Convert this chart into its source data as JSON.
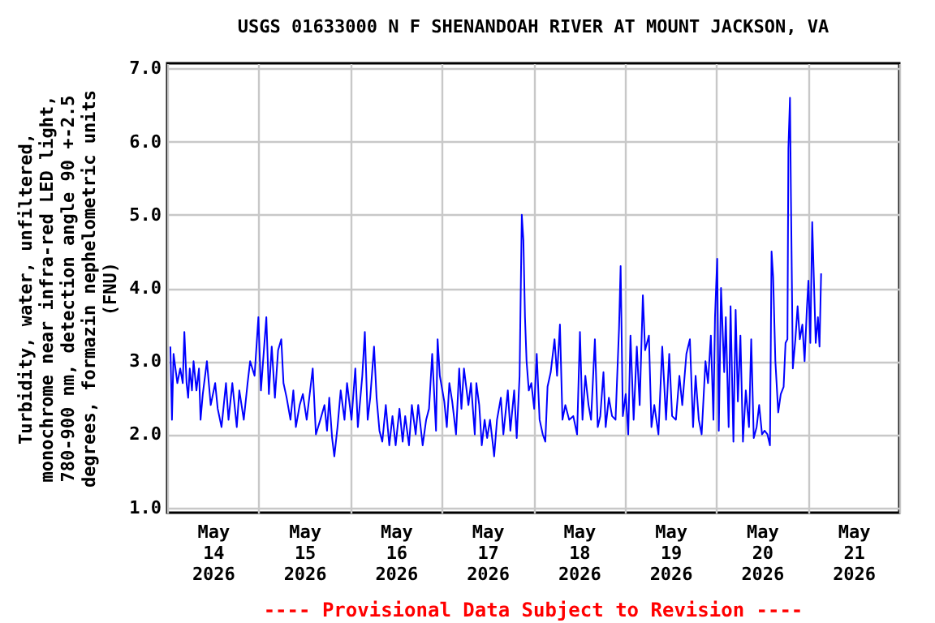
{
  "chart_data": {
    "type": "line",
    "title": "USGS 01633000 N F SHENANDOAH RIVER AT MOUNT JACKSON, VA",
    "ylabel": "Turbidity, water, unfiltered, monochrome near infra-red LED light, 780-900 nm, detection angle 90 +-2.5 degrees, formazin nephelometric units (FNU)",
    "annotations": [
      "---- Provisional Data Subject to Revision ----"
    ],
    "color": "#0000ff",
    "grid": true,
    "xlim": [
      "2026-05-14T00:00",
      "2026-05-22T00:00"
    ],
    "xticks": [
      {
        "value": "2026-05-14T00:00",
        "label": null
      },
      {
        "value": "2026-05-14T12:00",
        "label": "May\n14\n2026"
      },
      {
        "value": "2026-05-15T00:00",
        "label": null
      },
      {
        "value": "2026-05-15T12:00",
        "label": "May\n15\n2026"
      },
      {
        "value": "2026-05-16T00:00",
        "label": null
      },
      {
        "value": "2026-05-16T12:00",
        "label": "May\n16\n2026"
      },
      {
        "value": "2026-05-17T00:00",
        "label": null
      },
      {
        "value": "2026-05-17T12:00",
        "label": "May\n17\n2026"
      },
      {
        "value": "2026-05-18T00:00",
        "label": null
      },
      {
        "value": "2026-05-18T12:00",
        "label": "May\n18\n2026"
      },
      {
        "value": "2026-05-19T00:00",
        "label": null
      },
      {
        "value": "2026-05-19T12:00",
        "label": "May\n19\n2026"
      },
      {
        "value": "2026-05-20T00:00",
        "label": null
      },
      {
        "value": "2026-05-20T12:00",
        "label": "May\n20\n2026"
      },
      {
        "value": "2026-05-21T00:00",
        "label": null
      },
      {
        "value": "2026-05-21T12:00",
        "label": "May\n21\n2026"
      },
      {
        "value": "2026-05-22T00:00",
        "label": null
      }
    ],
    "ylim": [
      0.93,
      7.07
    ],
    "yticks": [
      {
        "value": 1,
        "label": "1.0"
      },
      {
        "value": 2,
        "label": "2.0"
      },
      {
        "value": 3,
        "label": "3.0"
      },
      {
        "value": 4,
        "label": "4.0"
      },
      {
        "value": 5,
        "label": "5.0"
      },
      {
        "value": 6,
        "label": "6.0"
      },
      {
        "value": 7,
        "label": "7.0"
      }
    ],
    "x": [
      "2026-05-14T00:50",
      "2026-05-14T01:15",
      "2026-05-14T01:40",
      "2026-05-14T02:40",
      "2026-05-14T03:25",
      "2026-05-14T04:05",
      "2026-05-14T04:30",
      "2026-05-14T05:05",
      "2026-05-14T05:30",
      "2026-05-14T05:55",
      "2026-05-14T06:30",
      "2026-05-14T06:55",
      "2026-05-14T07:40",
      "2026-05-14T08:20",
      "2026-05-14T08:45",
      "2026-05-14T09:20",
      "2026-05-14T10:25",
      "2026-05-14T11:25",
      "2026-05-14T12:35",
      "2026-05-14T13:15",
      "2026-05-14T14:15",
      "2026-05-14T15:25",
      "2026-05-14T16:05",
      "2026-05-14T17:05",
      "2026-05-14T18:15",
      "2026-05-14T18:55",
      "2026-05-14T20:05",
      "2026-05-14T21:05",
      "2026-05-14T21:45",
      "2026-05-14T22:55",
      "2026-05-14T23:55",
      "2026-05-15T00:35",
      "2026-05-15T02:00",
      "2026-05-15T02:40",
      "2026-05-15T03:25",
      "2026-05-15T04:15",
      "2026-05-15T05:05",
      "2026-05-15T05:55",
      "2026-05-15T06:30",
      "2026-05-15T07:20",
      "2026-05-15T08:20",
      "2026-05-15T09:05",
      "2026-05-15T09:45",
      "2026-05-15T10:45",
      "2026-05-15T11:35",
      "2026-05-15T12:35",
      "2026-05-15T14:10",
      "2026-05-15T15:00",
      "2026-05-15T16:10",
      "2026-05-15T17:15",
      "2026-05-15T17:55",
      "2026-05-15T18:30",
      "2026-05-15T19:15",
      "2026-05-15T19:50",
      "2026-05-15T20:40",
      "2026-05-15T21:30",
      "2026-05-15T22:30",
      "2026-05-15T23:10",
      "2026-05-16T00:20",
      "2026-05-16T01:20",
      "2026-05-16T02:00",
      "2026-05-16T03:10",
      "2026-05-16T03:50",
      "2026-05-16T04:35",
      "2026-05-16T05:15",
      "2026-05-16T06:15",
      "2026-05-16T06:55",
      "2026-05-16T07:40",
      "2026-05-16T08:25",
      "2026-05-16T09:20",
      "2026-05-16T10:15",
      "2026-05-16T11:05",
      "2026-05-16T11:55",
      "2026-05-16T12:55",
      "2026-05-16T13:45",
      "2026-05-16T14:25",
      "2026-05-16T15:25",
      "2026-05-16T16:10",
      "2026-05-16T17:10",
      "2026-05-16T17:50",
      "2026-05-16T19:00",
      "2026-05-16T19:55",
      "2026-05-16T20:40",
      "2026-05-16T21:30",
      "2026-05-16T22:30",
      "2026-05-16T22:55",
      "2026-05-16T23:30",
      "2026-05-17T00:40",
      "2026-05-17T01:20",
      "2026-05-17T02:00",
      "2026-05-17T02:45",
      "2026-05-17T03:45",
      "2026-05-17T04:35",
      "2026-05-17T05:10",
      "2026-05-17T05:50",
      "2026-05-17T07:00",
      "2026-05-17T07:40",
      "2026-05-17T08:40",
      "2026-05-17T09:05",
      "2026-05-17T09:50",
      "2026-05-17T10:30",
      "2026-05-17T11:15",
      "2026-05-17T11:55",
      "2026-05-17T12:40",
      "2026-05-17T13:20",
      "2026-05-17T13:45",
      "2026-05-17T14:30",
      "2026-05-17T15:30",
      "2026-05-17T16:10",
      "2026-05-17T17:20",
      "2026-05-17T18:00",
      "2026-05-17T19:00",
      "2026-05-17T19:40",
      "2026-05-17T20:25",
      "2026-05-17T21:00",
      "2026-05-17T21:25",
      "2026-05-17T21:50",
      "2026-05-17T22:15",
      "2026-05-17T22:50",
      "2026-05-17T23:30",
      "2026-05-18T00:15",
      "2026-05-18T00:55",
      "2026-05-18T01:40",
      "2026-05-18T02:30",
      "2026-05-18T03:10",
      "2026-05-18T03:45",
      "2026-05-18T04:35",
      "2026-05-18T05:35",
      "2026-05-18T06:15",
      "2026-05-18T07:00",
      "2026-05-18T07:40",
      "2026-05-18T08:25",
      "2026-05-18T09:25",
      "2026-05-18T10:30",
      "2026-05-18T11:30",
      "2026-05-18T12:15",
      "2026-05-18T12:55",
      "2026-05-18T13:40",
      "2026-05-18T14:30",
      "2026-05-18T15:10",
      "2026-05-18T16:10",
      "2026-05-18T16:55",
      "2026-05-18T17:35",
      "2026-05-18T18:25",
      "2026-05-18T19:00",
      "2026-05-18T19:50",
      "2026-05-18T20:40",
      "2026-05-18T21:35",
      "2026-05-18T22:30",
      "2026-05-18T22:55",
      "2026-05-18T23:30",
      "2026-05-19T00:15",
      "2026-05-19T00:55",
      "2026-05-19T01:30",
      "2026-05-19T02:20",
      "2026-05-19T03:10",
      "2026-05-19T03:55",
      "2026-05-19T04:45",
      "2026-05-19T05:20",
      "2026-05-19T06:20",
      "2026-05-19T07:00",
      "2026-05-19T07:45",
      "2026-05-19T08:50",
      "2026-05-19T09:50",
      "2026-05-19T10:50",
      "2026-05-19T11:40",
      "2026-05-19T12:25",
      "2026-05-19T13:25",
      "2026-05-19T14:20",
      "2026-05-19T15:05",
      "2026-05-19T16:10",
      "2026-05-19T17:05",
      "2026-05-19T17:55",
      "2026-05-19T18:35",
      "2026-05-19T19:25",
      "2026-05-19T20:10",
      "2026-05-19T21:10",
      "2026-05-19T21:50",
      "2026-05-19T22:35",
      "2026-05-19T23:15",
      "2026-05-19T23:40",
      "2026-05-20T00:15",
      "2026-05-20T00:40",
      "2026-05-20T01:15",
      "2026-05-20T02:05",
      "2026-05-20T02:30",
      "2026-05-20T03:15",
      "2026-05-20T03:45",
      "2026-05-20T04:30",
      "2026-05-20T05:05",
      "2026-05-20T05:40",
      "2026-05-20T06:20",
      "2026-05-20T07:00",
      "2026-05-20T07:45",
      "2026-05-20T08:35",
      "2026-05-20T09:10",
      "2026-05-20T09:50",
      "2026-05-20T10:35",
      "2026-05-20T11:15",
      "2026-05-20T12:00",
      "2026-05-20T12:40",
      "2026-05-20T13:25",
      "2026-05-20T14:05",
      "2026-05-20T14:30",
      "2026-05-20T14:55",
      "2026-05-20T15:30",
      "2026-05-20T16:15",
      "2026-05-20T16:55",
      "2026-05-20T17:40",
      "2026-05-20T18:10",
      "2026-05-20T18:40",
      "2026-05-20T18:55",
      "2026-05-20T19:20",
      "2026-05-20T19:35",
      "2026-05-20T20:05",
      "2026-05-20T20:45",
      "2026-05-20T21:20",
      "2026-05-20T21:55",
      "2026-05-20T22:35",
      "2026-05-20T23:10",
      "2026-05-20T23:45",
      "2026-05-21T00:10",
      "2026-05-21T00:40",
      "2026-05-21T01:10",
      "2026-05-21T01:35",
      "2026-05-21T02:05",
      "2026-05-21T02:40",
      "2026-05-21T03:05",
      "2026-05-21T03:30"
    ],
    "values": [
      3.2,
      2.2,
      3.1,
      2.7,
      2.9,
      2.7,
      3.4,
      2.7,
      2.5,
      2.9,
      2.6,
      3.0,
      2.6,
      2.9,
      2.2,
      2.55,
      3.0,
      2.4,
      2.7,
      2.35,
      2.1,
      2.7,
      2.2,
      2.7,
      2.1,
      2.6,
      2.2,
      2.7,
      3.0,
      2.8,
      3.6,
      2.6,
      3.6,
      2.55,
      3.2,
      2.5,
      3.15,
      3.3,
      2.7,
      2.5,
      2.2,
      2.6,
      2.1,
      2.4,
      2.55,
      2.2,
      2.9,
      2.0,
      2.2,
      2.4,
      2.05,
      2.5,
      1.95,
      1.7,
      2.1,
      2.6,
      2.2,
      2.7,
      2.2,
      2.9,
      2.1,
      2.8,
      3.4,
      2.2,
      2.5,
      3.2,
      2.5,
      2.05,
      1.9,
      2.4,
      1.85,
      2.25,
      1.85,
      2.35,
      1.9,
      2.25,
      1.85,
      2.4,
      2.0,
      2.4,
      1.85,
      2.2,
      2.35,
      3.1,
      2.05,
      3.3,
      2.8,
      2.45,
      2.1,
      2.7,
      2.45,
      2.0,
      2.9,
      2.35,
      2.9,
      2.4,
      2.7,
      2.0,
      2.7,
      2.4,
      1.85,
      2.2,
      1.95,
      2.2,
      1.9,
      1.7,
      2.2,
      2.5,
      2.0,
      2.6,
      2.05,
      2.6,
      1.95,
      2.8,
      5.0,
      4.65,
      3.6,
      3.0,
      2.6,
      2.7,
      2.35,
      3.1,
      2.2,
      2.0,
      1.9,
      2.65,
      2.85,
      3.3,
      2.8,
      3.5,
      2.2,
      2.4,
      2.2,
      2.25,
      2.0,
      3.4,
      2.2,
      2.8,
      2.4,
      2.2,
      3.3,
      2.1,
      2.25,
      2.85,
      2.1,
      2.5,
      2.25,
      2.2,
      3.45,
      4.3,
      2.25,
      2.55,
      2.0,
      3.35,
      2.2,
      3.2,
      2.4,
      3.9,
      3.15,
      3.35,
      2.1,
      2.4,
      2.0,
      3.2,
      2.2,
      3.1,
      2.25,
      2.2,
      2.8,
      2.4,
      3.1,
      3.3,
      2.1,
      2.8,
      2.2,
      2.0,
      3.0,
      2.7,
      3.35,
      2.2,
      3.6,
      4.4,
      2.05,
      4.0,
      2.85,
      3.6,
      2.1,
      3.75,
      1.9,
      3.7,
      2.45,
      3.35,
      1.9,
      2.6,
      2.1,
      3.3,
      1.95,
      2.1,
      2.4,
      2.0,
      2.05,
      2.0,
      1.85,
      4.5,
      4.15,
      3.0,
      2.3,
      2.55,
      2.65,
      3.25,
      3.3,
      5.9,
      6.6,
      5.25,
      2.9,
      3.3,
      3.75,
      3.3,
      3.5,
      3.0,
      3.7,
      4.1,
      3.25,
      4.9,
      4.15,
      3.25,
      3.6,
      3.2,
      4.2
    ]
  }
}
